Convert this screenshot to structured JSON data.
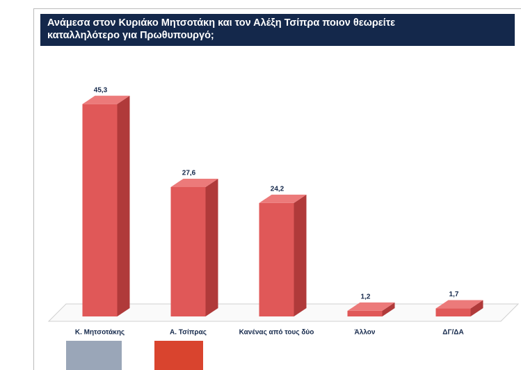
{
  "chart_data": {
    "type": "bar3d",
    "title": "Ανάμεσα στον Κυριάκο Μητσοτάκη και τον Αλέξη Τσίπρα ποιον θεωρείτε καταλληλότερο για Πρωθυπουργό;",
    "categories": [
      "Κ. Μητσοτάκης",
      "Α. Τσίπρας",
      "Κανένας από τους δύο",
      "Άλλον",
      "ΔΓ/ΔΑ"
    ],
    "values": [
      45.3,
      27.6,
      24.2,
      1.2,
      1.7
    ],
    "value_labels": [
      "45,3",
      "27,6",
      "24,2",
      "1,2",
      "1,7"
    ],
    "color": "#e05858",
    "ylim": [
      0,
      50
    ]
  }
}
